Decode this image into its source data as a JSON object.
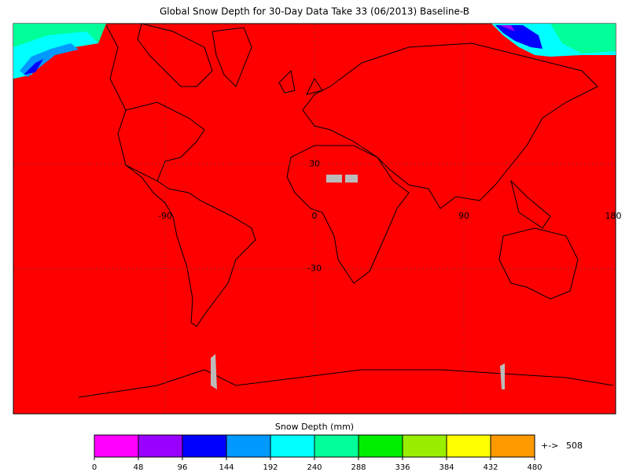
{
  "title": "Global Snow Depth for 30-Day Data Take 33 (06/2013) Baseline-B",
  "map": {
    "lon_labels": [
      -90,
      0,
      90,
      180
    ],
    "lat_labels": [
      30,
      -30
    ],
    "no_snow_color": "#ff0000",
    "missing_color": "#bbbbbb"
  },
  "legend": {
    "title": "Snow Depth (mm)",
    "bins": [
      0,
      48,
      96,
      144,
      192,
      240,
      288,
      336,
      384,
      432,
      480
    ],
    "colors": [
      "#ff00ff",
      "#9900ff",
      "#0000ff",
      "#0099ff",
      "#00ffff",
      "#00ff99",
      "#00ee00",
      "#99ee00",
      "#ffff00",
      "#ff9900"
    ],
    "overflow_label": "+->",
    "overflow_value": 508,
    "overflow_color": "#ff9900"
  }
}
